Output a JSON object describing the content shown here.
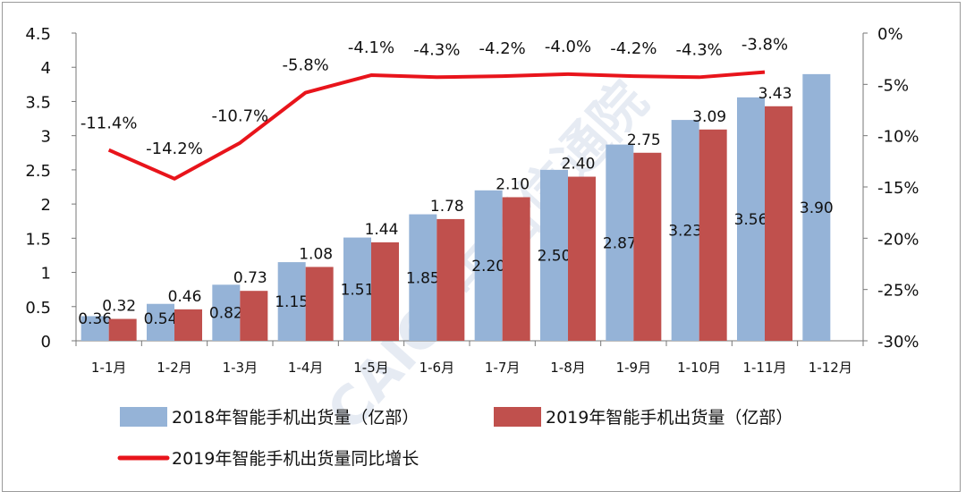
{
  "chart_data": {
    "type": "bar",
    "categories": [
      "1-1月",
      "1-2月",
      "1-3月",
      "1-4月",
      "1-5月",
      "1-6月",
      "1-7月",
      "1-8月",
      "1-9月",
      "1-10月",
      "1-11月",
      "1-12月"
    ],
    "series": [
      {
        "name": "2018年智能手机出货量（亿部）",
        "type": "bar",
        "axis": "left",
        "color": "#95b3d7",
        "values": [
          0.36,
          0.54,
          0.82,
          1.15,
          1.51,
          1.85,
          2.2,
          2.5,
          2.87,
          3.23,
          3.56,
          3.9
        ],
        "labels": [
          "0.36",
          "0.54",
          "0.82",
          "1.15",
          "1.51",
          "1.85",
          "2.20",
          "2.50",
          "2.87",
          "3.23",
          "3.56",
          "3.90"
        ]
      },
      {
        "name": "2019年智能手机出货量（亿部）",
        "type": "bar",
        "axis": "left",
        "color": "#c0504d",
        "values": [
          0.32,
          0.46,
          0.73,
          1.08,
          1.44,
          1.78,
          2.1,
          2.4,
          2.75,
          3.09,
          3.43,
          null
        ],
        "labels": [
          "0.32",
          "0.46",
          "0.73",
          "1.08",
          "1.44",
          "1.78",
          "2.10",
          "2.40",
          "2.75",
          "3.09",
          "3.43",
          ""
        ]
      },
      {
        "name": "2019年智能手机出货量同比增长",
        "type": "line",
        "axis": "right",
        "color": "#e8141b",
        "values": [
          -11.4,
          -14.2,
          -10.7,
          -5.8,
          -4.1,
          -4.3,
          -4.2,
          -4.0,
          -4.2,
          -4.3,
          -3.8,
          null
        ],
        "labels": [
          "-11.4%",
          "-14.2%",
          "-10.7%",
          "-5.8%",
          "-4.1%",
          "-4.3%",
          "-4.2%",
          "-4.0%",
          "-4.2%",
          "-4.3%",
          "-3.8%",
          ""
        ]
      }
    ],
    "ylim": [
      0,
      4.5
    ],
    "yticks": [
      "0",
      "0.5",
      "1",
      "1.5",
      "2",
      "2.5",
      "3",
      "3.5",
      "4",
      "4.5"
    ],
    "y2lim": [
      -30,
      0
    ],
    "y2ticks": [
      "-30%",
      "-25%",
      "-20%",
      "-15%",
      "-10%",
      "-5%",
      "0%"
    ],
    "grid": false,
    "legend_position": "bottom"
  },
  "watermark": "CAICT中国信通院"
}
